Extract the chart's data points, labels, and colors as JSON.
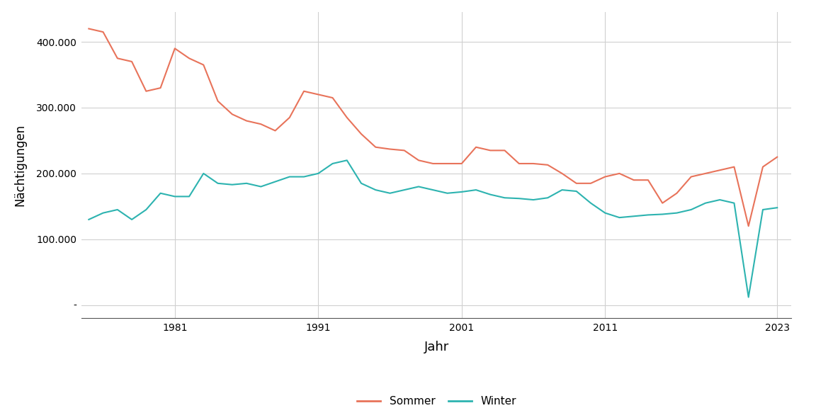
{
  "sommer_years": [
    1975,
    1976,
    1977,
    1978,
    1979,
    1980,
    1981,
    1982,
    1983,
    1984,
    1985,
    1986,
    1987,
    1988,
    1989,
    1990,
    1991,
    1992,
    1993,
    1994,
    1995,
    1996,
    1997,
    1998,
    1999,
    2000,
    2001,
    2002,
    2003,
    2004,
    2005,
    2006,
    2007,
    2008,
    2009,
    2010,
    2011,
    2012,
    2013,
    2014,
    2015,
    2016,
    2017,
    2018,
    2019,
    2020,
    2021,
    2022,
    2023
  ],
  "sommer_values": [
    420000,
    415000,
    375000,
    370000,
    325000,
    330000,
    390000,
    375000,
    365000,
    310000,
    290000,
    280000,
    275000,
    265000,
    285000,
    325000,
    320000,
    315000,
    285000,
    260000,
    240000,
    237000,
    235000,
    220000,
    215000,
    215000,
    215000,
    240000,
    235000,
    235000,
    215000,
    215000,
    213000,
    200000,
    185000,
    185000,
    195000,
    200000,
    190000,
    190000,
    155000,
    170000,
    195000,
    200000,
    205000,
    210000,
    120000,
    210000,
    225000
  ],
  "winter_years": [
    1975,
    1976,
    1977,
    1978,
    1979,
    1980,
    1981,
    1982,
    1983,
    1984,
    1985,
    1986,
    1987,
    1989,
    1990,
    1991,
    1992,
    1993,
    1994,
    1995,
    1996,
    1997,
    1998,
    1999,
    2000,
    2001,
    2002,
    2003,
    2004,
    2005,
    2006,
    2007,
    2008,
    2009,
    2010,
    2011,
    2012,
    2013,
    2014,
    2015,
    2016,
    2017,
    2018,
    2019,
    2020,
    2021,
    2022,
    2023
  ],
  "winter_values": [
    130000,
    140000,
    145000,
    130000,
    145000,
    170000,
    165000,
    165000,
    200000,
    185000,
    183000,
    185000,
    180000,
    195000,
    195000,
    200000,
    215000,
    220000,
    185000,
    175000,
    170000,
    175000,
    180000,
    175000,
    170000,
    172000,
    175000,
    168000,
    163000,
    162000,
    160000,
    163000,
    175000,
    173000,
    155000,
    140000,
    133000,
    135000,
    137000,
    138000,
    140000,
    145000,
    155000,
    160000,
    155000,
    12000,
    145000,
    148000
  ],
  "sommer_color": "#E8735A",
  "winter_color": "#2DB3B0",
  "ylabel": "Nächtigungen",
  "xlabel": "Jahr",
  "yticks": [
    0,
    100000,
    200000,
    300000,
    400000
  ],
  "ytick_labels": [
    "-",
    "100.000",
    "200.000",
    "300.000",
    "400.000"
  ],
  "xticks": [
    1981,
    1991,
    2001,
    2011,
    2023
  ],
  "ylim": [
    -20000,
    445000
  ],
  "xlim": [
    1974.5,
    2024
  ],
  "legend_labels": [
    "Sommer",
    "Winter"
  ],
  "background_color": "#ffffff",
  "grid_color": "#d0d0d0",
  "line_width": 1.5
}
